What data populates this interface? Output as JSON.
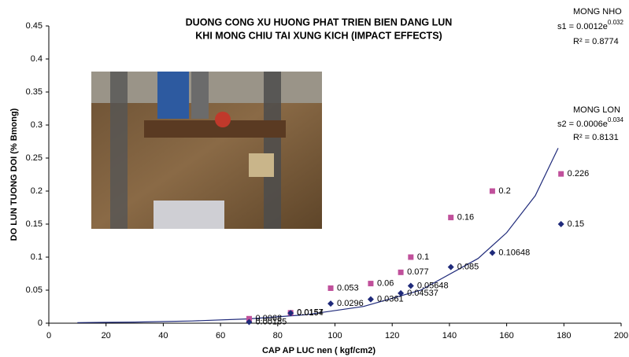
{
  "chart_data": {
    "type": "scatter",
    "title": [
      "DUONG CONG XU HUONG PHAT TRIEN BIEN DANG LUN",
      "KHI MONG CHIU TAI XUNG KICH (IMPACT EFFECTS)"
    ],
    "x_label": "CAP AP LUC nen ( kgf/cm2)",
    "y_label": "DO LUN TUONG DOI (% Bmong)",
    "xlim": [
      0,
      200
    ],
    "xticks": [
      0,
      20,
      40,
      60,
      80,
      100,
      120,
      140,
      160,
      180,
      200
    ],
    "ylim": [
      0,
      0.45
    ],
    "yticks": [
      0,
      0.05,
      0.1,
      0.15,
      0.2,
      0.25,
      0.3,
      0.35,
      0.4,
      0.45
    ],
    "x": [
      70,
      84.5,
      98.5,
      112.5,
      123,
      126.5,
      140.5,
      155,
      179
    ],
    "series": [
      {
        "name": "MONG NHO",
        "color": "#c0509b",
        "marker": "square",
        "values": [
          0.0068,
          0.0157,
          0.053,
          0.06,
          0.077,
          0.1,
          0.16,
          0.2,
          0.226
        ]
      },
      {
        "name": "MONG LON",
        "color": "#1f2a7a",
        "marker": "diamond",
        "values": [
          0.00185,
          0.0154,
          0.0296,
          0.0361,
          0.04537,
          0.05648,
          0.085,
          0.10648,
          0.15
        ]
      }
    ],
    "trendline": {
      "color": "#1f2a7a",
      "x": [
        10,
        30,
        50,
        70,
        90,
        110,
        130,
        150,
        160,
        170,
        178
      ],
      "values": [
        0.0008,
        0.0017,
        0.0033,
        0.0065,
        0.0128,
        0.0254,
        0.05,
        0.098,
        0.137,
        0.193,
        0.265
      ]
    },
    "annotations": [
      {
        "text": "MONG NHO",
        "equation": "s1 = 0.0012e",
        "exponent": "0.032",
        "r2": "R² = 0.8774"
      },
      {
        "text": "MONG LON",
        "equation": "s2 = 0.0006e",
        "exponent": "0.034",
        "r2": "R² = 0.8131"
      }
    ]
  }
}
